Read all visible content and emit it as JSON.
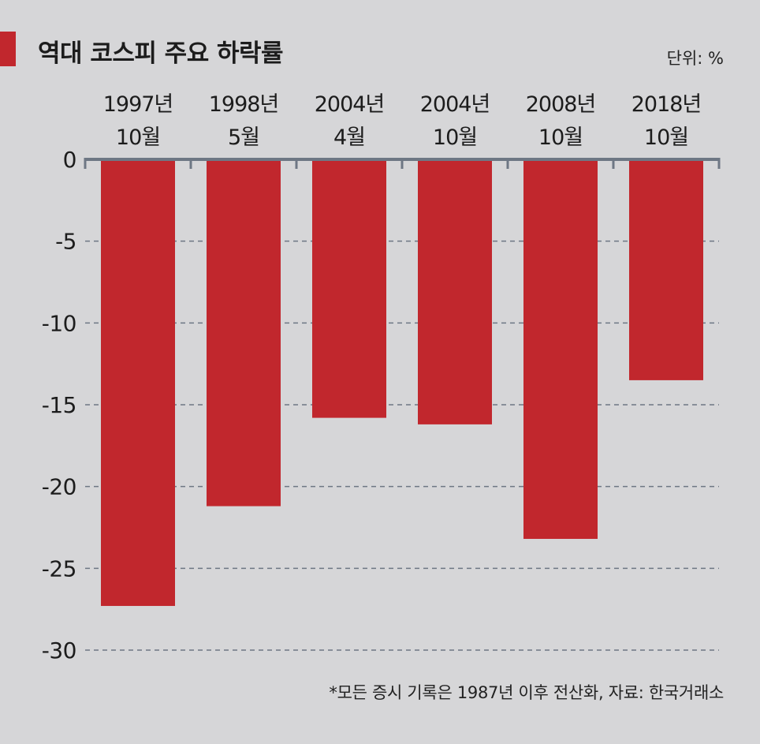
{
  "header": {
    "title": "역대 코스피 주요 하락률",
    "unit": "단위: %"
  },
  "footer": {
    "note": "*모든 증시 기록은 1987년 이후 전산화, 자료: 한국거래소"
  },
  "colors": {
    "bar": "#c1272d",
    "accent": "#c1272d",
    "axis": "#6e7784",
    "grid": "#6e7784",
    "background": "#d6d6d8"
  },
  "chart_data": {
    "type": "bar",
    "categories": [
      [
        "1997년",
        "10월"
      ],
      [
        "1998년",
        "5월"
      ],
      [
        "2004년",
        "4월"
      ],
      [
        "2004년",
        "10월"
      ],
      [
        "2008년",
        "10월"
      ],
      [
        "2018년",
        "10월"
      ]
    ],
    "values": [
      -27.3,
      -21.2,
      -15.8,
      -16.2,
      -23.2,
      -13.5
    ],
    "title": "역대 코스피 주요 하락률",
    "xlabel": "",
    "ylabel": "",
    "ylim": [
      -30,
      0
    ],
    "yticks": [
      0,
      -5,
      -10,
      -15,
      -20,
      -25,
      -30
    ],
    "ytick_labels": [
      "0",
      "-5",
      "-10",
      "-15",
      "-20",
      "-25",
      "-30"
    ],
    "grid": "dashed horizontal",
    "category_axis_position": "top"
  }
}
